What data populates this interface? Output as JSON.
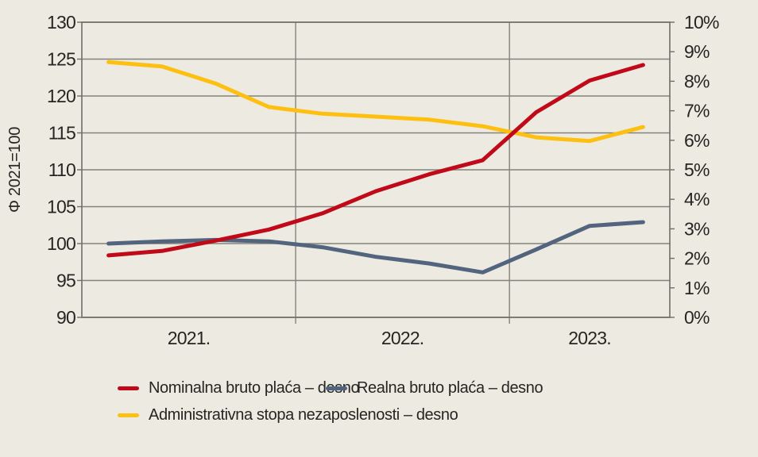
{
  "chart_data": {
    "type": "line",
    "frequency": "quarterly",
    "categories": [
      "2021Q1",
      "2021Q2",
      "2021Q3",
      "2021Q4",
      "2022Q1",
      "2022Q2",
      "2022Q3",
      "2022Q4",
      "2023Q1",
      "2023Q2",
      "2023Q3"
    ],
    "series": [
      {
        "name": "Nominalna bruto plaća – desno",
        "color": "#c00a1a",
        "axis": "right",
        "values_index": [
          98.4,
          99.0,
          100.4,
          101.9,
          104.1,
          107.1,
          109.4,
          111.3,
          117.8,
          122.1,
          124.2
        ],
        "values_pct": [
          2.1,
          2.25,
          2.6,
          3.0,
          3.5,
          4.3,
          4.85,
          5.35,
          6.95,
          8.0,
          8.55
        ]
      },
      {
        "name": "Realna bruto plaća – desno",
        "color": "#52647e",
        "axis": "right",
        "values_index": [
          100.0,
          100.3,
          100.5,
          100.3,
          99.5,
          98.2,
          97.3,
          96.1,
          99.2,
          102.4,
          102.9
        ],
        "values_pct": [
          2.5,
          2.6,
          2.6,
          2.6,
          2.4,
          2.05,
          1.8,
          1.5,
          2.3,
          3.1,
          3.2
        ]
      },
      {
        "name": "Administrativna stopa nezaposlenosti – desno",
        "color": "#fdc011",
        "axis": "right",
        "values_index": [
          124.6,
          124.0,
          121.7,
          118.5,
          117.6,
          117.2,
          116.8,
          115.9,
          114.4,
          113.9,
          115.8
        ],
        "values_pct": [
          8.65,
          8.5,
          7.9,
          7.1,
          6.9,
          6.8,
          6.7,
          6.5,
          6.1,
          6.0,
          6.45
        ]
      }
    ],
    "left_axis": {
      "title": "Φ 2021=100",
      "ticks": [
        "130",
        "125",
        "120",
        "115",
        "110",
        "105",
        "100",
        "95",
        "90"
      ],
      "range": [
        90,
        130
      ]
    },
    "right_axis": {
      "ticks": [
        "10%",
        "9%",
        "8%",
        "7%",
        "6%",
        "5%",
        "4%",
        "3%",
        "2%",
        "1%",
        "0%"
      ],
      "range_pct": [
        0,
        10
      ]
    },
    "x_axis": {
      "labels": [
        "2021.",
        "2022.",
        "2023."
      ],
      "group_sizes": [
        4,
        4,
        3
      ]
    },
    "legend": [
      {
        "label": "Nominalna bruto plaća – desno",
        "color": "#c00a1a"
      },
      {
        "label": "Realna bruto plaća – desno",
        "color": "#52647e"
      },
      {
        "label": "Administrativna stopa nezaposlenosti – desno",
        "color": "#fdc011"
      }
    ],
    "layout": {
      "background": "#edeae2",
      "grid_color": "#84837b",
      "border_color": "#6f6e67",
      "text_color": "#262522",
      "grid": "on",
      "legend_position": "bottom"
    }
  }
}
